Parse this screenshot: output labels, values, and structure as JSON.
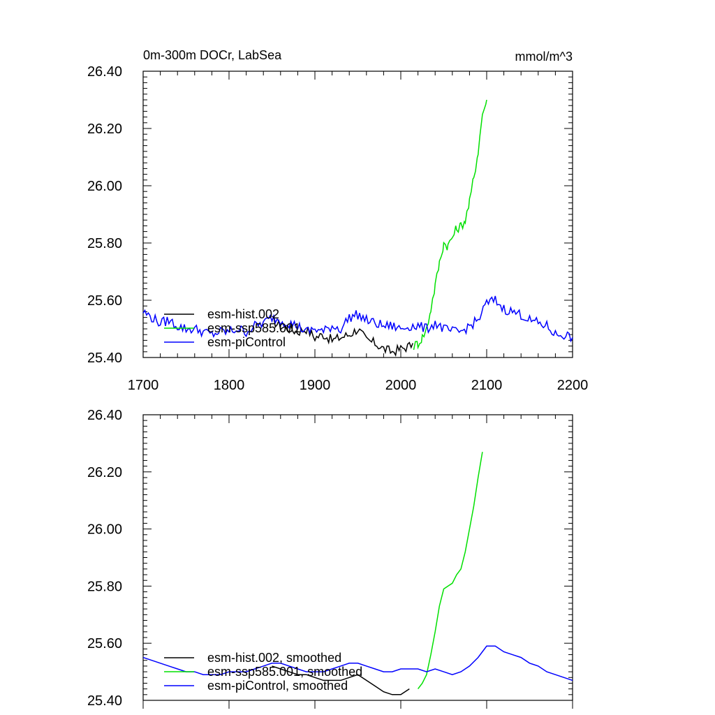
{
  "page": {
    "title": "0m-300m DOCr, LabSea",
    "units": "mmol/m^3"
  },
  "chart_data": [
    {
      "type": "line",
      "title": "0m-300m DOCr, LabSea",
      "units": "mmol/m^3",
      "xlim": [
        1700,
        2200
      ],
      "ylim": [
        25.4,
        26.4
      ],
      "xticks": [
        "1700",
        "1800",
        "1900",
        "2000",
        "2100",
        "2200"
      ],
      "yticks": [
        "25.40",
        "25.60",
        "25.80",
        "26.00",
        "26.20",
        "26.40"
      ],
      "legend_position": "bottom-left",
      "series": [
        {
          "name": "esm-hist.002",
          "color": "#000000",
          "x": [
            1850,
            1860,
            1870,
            1880,
            1890,
            1900,
            1910,
            1920,
            1930,
            1940,
            1950,
            1960,
            1970,
            1980,
            1990,
            2000,
            2010,
            2014
          ],
          "y": [
            25.53,
            25.51,
            25.5,
            25.49,
            25.5,
            25.47,
            25.48,
            25.46,
            25.47,
            25.48,
            25.5,
            25.46,
            25.45,
            25.43,
            25.42,
            25.43,
            25.44,
            25.45
          ]
        },
        {
          "name": "esm-ssp585.001",
          "color": "#00e000",
          "x": [
            2015,
            2020,
            2025,
            2030,
            2035,
            2040,
            2045,
            2050,
            2055,
            2060,
            2065,
            2070,
            2075,
            2080,
            2085,
            2090,
            2095,
            2100
          ],
          "y": [
            25.44,
            25.45,
            25.47,
            25.5,
            25.57,
            25.65,
            25.73,
            25.8,
            25.79,
            25.82,
            25.85,
            25.86,
            25.88,
            25.94,
            26.03,
            26.12,
            26.25,
            26.3
          ]
        },
        {
          "name": "esm-piControl",
          "color": "#0000ff",
          "x": [
            1700,
            1710,
            1720,
            1730,
            1740,
            1750,
            1760,
            1770,
            1780,
            1790,
            1800,
            1810,
            1820,
            1830,
            1840,
            1850,
            1860,
            1870,
            1880,
            1890,
            1900,
            1910,
            1920,
            1930,
            1940,
            1950,
            1960,
            1970,
            1980,
            1990,
            2000,
            2010,
            2020,
            2030,
            2040,
            2050,
            2060,
            2070,
            2080,
            2090,
            2100,
            2110,
            2120,
            2130,
            2140,
            2150,
            2160,
            2170,
            2180,
            2190,
            2200
          ],
          "y": [
            25.56,
            25.54,
            25.52,
            25.53,
            25.51,
            25.5,
            25.5,
            25.49,
            25.48,
            25.49,
            25.49,
            25.5,
            25.49,
            25.51,
            25.52,
            25.54,
            25.53,
            25.52,
            25.51,
            25.49,
            25.5,
            25.49,
            25.51,
            25.5,
            25.54,
            25.55,
            25.53,
            25.52,
            25.51,
            25.51,
            25.5,
            25.51,
            25.51,
            25.5,
            25.52,
            25.5,
            25.49,
            25.49,
            25.51,
            25.53,
            25.59,
            25.6,
            25.57,
            25.56,
            25.55,
            25.53,
            25.52,
            25.51,
            25.48,
            25.48,
            25.47
          ]
        }
      ]
    },
    {
      "type": "line",
      "xlim": [
        1700,
        2200
      ],
      "ylim": [
        25.4,
        26.4
      ],
      "yticks": [
        "25.40",
        "25.60",
        "25.80",
        "26.00",
        "26.20",
        "26.40"
      ],
      "legend_position": "bottom-left",
      "series": [
        {
          "name": "esm-hist.002, smoothed",
          "color": "#000000",
          "x": [
            1850,
            1860,
            1870,
            1880,
            1890,
            1900,
            1910,
            1920,
            1930,
            1940,
            1950,
            1960,
            1970,
            1980,
            1990,
            2000,
            2010
          ],
          "y": [
            25.52,
            25.51,
            25.5,
            25.49,
            25.49,
            25.48,
            25.47,
            25.47,
            25.47,
            25.48,
            25.49,
            25.47,
            25.45,
            25.43,
            25.42,
            25.42,
            25.44
          ]
        },
        {
          "name": "esm-ssp585.001, smoothed",
          "color": "#00e000",
          "x": [
            2020,
            2025,
            2030,
            2035,
            2040,
            2045,
            2050,
            2055,
            2060,
            2065,
            2070,
            2075,
            2080,
            2085,
            2090,
            2095
          ],
          "y": [
            25.44,
            25.46,
            25.49,
            25.56,
            25.64,
            25.73,
            25.79,
            25.8,
            25.81,
            25.84,
            25.86,
            25.92,
            26.0,
            26.08,
            26.18,
            26.27
          ]
        },
        {
          "name": "esm-piControl, smoothed",
          "color": "#0000ff",
          "x": [
            1700,
            1710,
            1720,
            1730,
            1740,
            1750,
            1760,
            1770,
            1780,
            1790,
            1800,
            1810,
            1820,
            1830,
            1840,
            1850,
            1860,
            1870,
            1880,
            1890,
            1900,
            1910,
            1920,
            1930,
            1940,
            1950,
            1960,
            1970,
            1980,
            1990,
            2000,
            2010,
            2020,
            2030,
            2040,
            2050,
            2060,
            2070,
            2080,
            2090,
            2100,
            2110,
            2120,
            2130,
            2140,
            2150,
            2160,
            2170,
            2180,
            2190,
            2200
          ],
          "y": [
            25.55,
            25.54,
            25.53,
            25.52,
            25.51,
            25.5,
            25.5,
            25.49,
            25.49,
            25.49,
            25.5,
            25.5,
            25.5,
            25.51,
            25.52,
            25.53,
            25.53,
            25.52,
            25.51,
            25.5,
            25.5,
            25.5,
            25.51,
            25.52,
            25.53,
            25.53,
            25.52,
            25.51,
            25.5,
            25.5,
            25.51,
            25.51,
            25.51,
            25.5,
            25.51,
            25.5,
            25.49,
            25.5,
            25.52,
            25.55,
            25.59,
            25.59,
            25.57,
            25.56,
            25.55,
            25.53,
            25.52,
            25.5,
            25.49,
            25.48,
            25.47
          ]
        }
      ]
    }
  ]
}
